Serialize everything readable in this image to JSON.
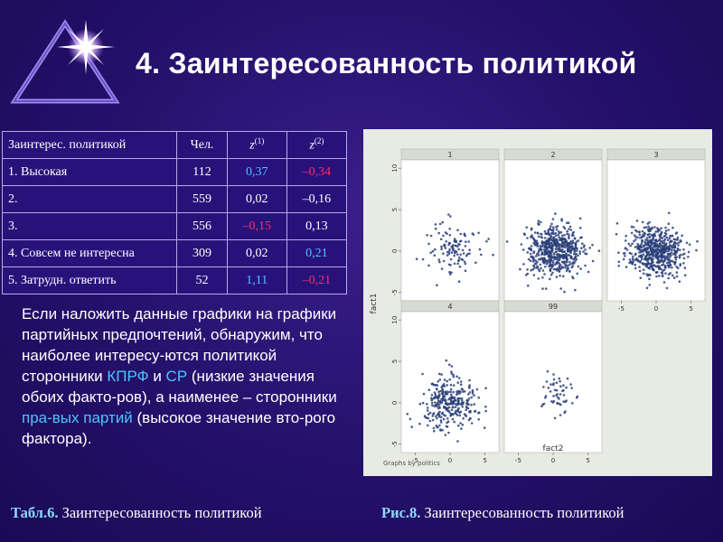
{
  "title": "4. Заинтересованность политикой",
  "table": {
    "headers": [
      "Заинтерес. политикой",
      "Чел.",
      "z",
      "(1)",
      "z",
      "(2)"
    ],
    "rows": [
      {
        "label": "1. Высокая",
        "n": "112",
        "z1": "0,37",
        "z2": "–0,34",
        "z1_color": "blue",
        "z2_color": "red"
      },
      {
        "label": "2.",
        "n": "559",
        "z1": "0,02",
        "z2": "–0,16",
        "z1_color": "white",
        "z2_color": "white"
      },
      {
        "label": "3.",
        "n": "556",
        "z1": "–0,15",
        "z2": "0,13",
        "z1_color": "red",
        "z2_color": "white"
      },
      {
        "label": "4. Совсем не интересна",
        "n": "309",
        "z1": "0,02",
        "z2": "0,21",
        "z1_color": "white",
        "z2_color": "blue"
      },
      {
        "label": "5. Затрудн. ответить",
        "n": "52",
        "z1": "1,11",
        "z2": "–0,21",
        "z1_color": "blue",
        "z2_color": "red"
      }
    ]
  },
  "paragraph": {
    "p1": "Если наложить данные графики на графики партийных предпочтений, обнаружим, что наиболее интересу-ются политикой сторонники ",
    "kprf": "КПРФ",
    "p2": " и ",
    "sr": "СР",
    "p3": " (низкие значения обоих факто-ров), а наименее – сторонники ",
    "right": "пра-вых партий",
    "p4": " (высокое значение вто-рого фактора)."
  },
  "caption_table": {
    "label": "Табл.6.",
    "text": " Заинтересованность политикой"
  },
  "caption_figure": {
    "label": "Рис.8.",
    "text": " Заинтересованность политикой"
  },
  "figure": {
    "panel_titles": [
      "1",
      "2",
      "3",
      "4",
      "99"
    ],
    "y_label": "fact1",
    "x_label": "fact2",
    "footnote": "Graphs by politics",
    "y_ticks": [
      "10",
      "5",
      "0",
      "-5"
    ],
    "x_ticks": [
      "-5",
      "0",
      "5"
    ],
    "colors": {
      "point": "#2c3f7a",
      "panel_bg": "#ffffff",
      "figure_bg": "#e8eae4"
    },
    "chart_data": {
      "type": "scatter",
      "xlim": [
        -7,
        7
      ],
      "ylim": [
        -6,
        11
      ],
      "panels": [
        {
          "name": "1",
          "n": 112,
          "cx": 0.5,
          "cy": 0.6,
          "sx": 2.0,
          "sy": 1.7
        },
        {
          "name": "2",
          "n": 559,
          "cx": 0.2,
          "cy": 0.1,
          "sx": 2.0,
          "sy": 1.5
        },
        {
          "name": "3",
          "n": 556,
          "cx": 0.0,
          "cy": -0.1,
          "sx": 2.0,
          "sy": 1.5
        },
        {
          "name": "4",
          "n": 309,
          "cx": -0.2,
          "cy": 0.1,
          "sx": 2.0,
          "sy": 1.5
        },
        {
          "name": "99",
          "n": 52,
          "cx": 0.3,
          "cy": 1.2,
          "sx": 1.3,
          "sy": 1.3
        }
      ]
    }
  }
}
